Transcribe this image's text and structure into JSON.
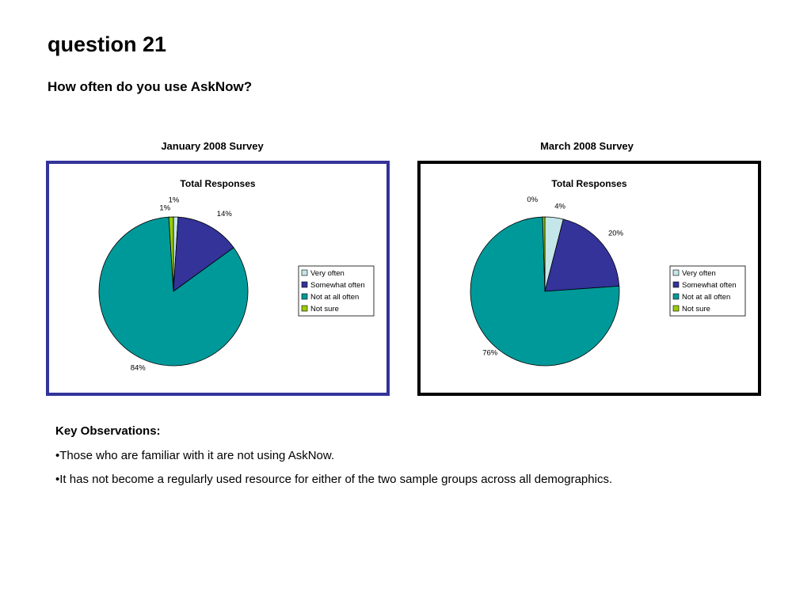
{
  "slide": {
    "title": "question 21",
    "subtitle": "How often do you use AskNow?"
  },
  "panels": [
    {
      "caption": "January 2008 Survey",
      "border_color": "#33339a"
    },
    {
      "caption": "March 2008 Survey",
      "border_color": "#000000"
    }
  ],
  "chart_data": [
    {
      "type": "pie",
      "title": "Total Responses",
      "categories": [
        "Very often",
        "Somewhat often",
        "Not at all often",
        "Not sure"
      ],
      "values": [
        1,
        14,
        84,
        1
      ],
      "data_labels": [
        "1%",
        "14%",
        "84%",
        "1%"
      ],
      "colors": [
        "#c4e6e8",
        "#33339a",
        "#009999",
        "#99cc00"
      ],
      "legend": "right"
    },
    {
      "type": "pie",
      "title": "Total Responses",
      "categories": [
        "Very often",
        "Somewhat often",
        "Not at all often",
        "Not sure"
      ],
      "values": [
        4,
        20,
        76,
        0.5
      ],
      "data_labels": [
        "4%",
        "20%",
        "76%",
        "0%"
      ],
      "colors": [
        "#c4e6e8",
        "#33339a",
        "#009999",
        "#99cc00"
      ],
      "legend": "right"
    }
  ],
  "observations": {
    "heading": "Key Observations:",
    "items": [
      "•Those who are familiar with it are not using AskNow.",
      "•It has not become a regularly used resource for either of the two sample groups across all demographics."
    ]
  }
}
